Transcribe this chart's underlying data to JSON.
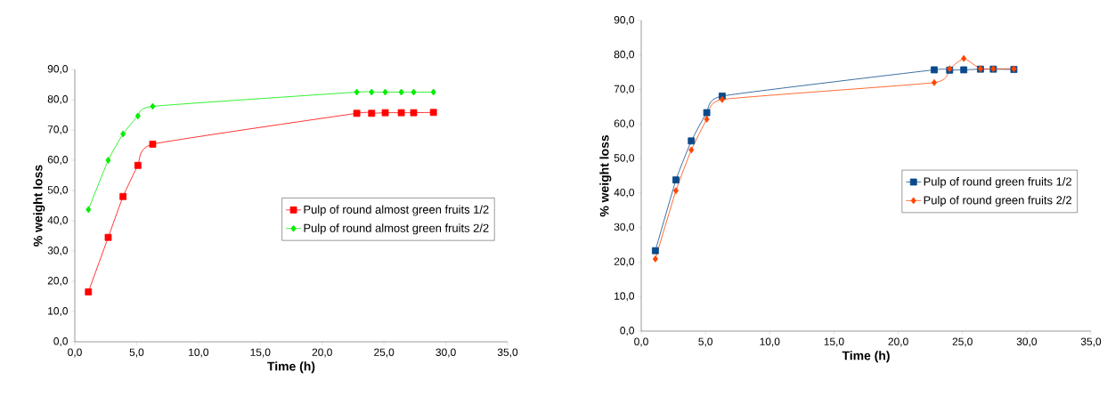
{
  "chart_data": [
    {
      "type": "line",
      "xlabel": "Time (h)",
      "ylabel": "% weight loss",
      "x": [
        1.1,
        2.7,
        3.9,
        5.1,
        6.3,
        22.8,
        24.0,
        25.1,
        26.4,
        27.4,
        29.0
      ],
      "series": [
        {
          "name": "Pulp of round almost green fruits 1/2",
          "color": "#ff0000",
          "marker": "square",
          "values": [
            16.5,
            34.5,
            48.0,
            58.3,
            65.3,
            75.5,
            75.5,
            75.7,
            75.7,
            75.7,
            75.8
          ]
        },
        {
          "name": "Pulp of round almost green fruits 2/2",
          "color": "#00ee00",
          "marker": "diamond",
          "values": [
            43.7,
            60.0,
            68.7,
            74.6,
            77.8,
            82.5,
            82.5,
            82.5,
            82.5,
            82.5,
            82.5
          ]
        }
      ],
      "xlim": [
        0,
        35
      ],
      "ylim": [
        0,
        90
      ],
      "xticks": [
        {
          "value": 0,
          "label": "0,0"
        },
        {
          "value": 5,
          "label": "5,0"
        },
        {
          "value": 10,
          "label": "10,0"
        },
        {
          "value": 15,
          "label": "15,0"
        },
        {
          "value": 20,
          "label": "20,0"
        },
        {
          "value": 25,
          "label": "25,0"
        },
        {
          "value": 30,
          "label": "30,0"
        },
        {
          "value": 35,
          "label": "35,0"
        }
      ],
      "yticks": [
        {
          "value": 0,
          "label": "0,0"
        },
        {
          "value": 10,
          "label": "10,0"
        },
        {
          "value": 20,
          "label": "20,0"
        },
        {
          "value": 30,
          "label": "30,0"
        },
        {
          "value": 40,
          "label": "40,0"
        },
        {
          "value": 50,
          "label": "50,0"
        },
        {
          "value": 60,
          "label": "60,0"
        },
        {
          "value": 70,
          "label": "70,0"
        },
        {
          "value": 80,
          "label": "80,0"
        },
        {
          "value": 90,
          "label": "90,0"
        }
      ],
      "grid": false,
      "legend": "right"
    },
    {
      "type": "line",
      "xlabel": "Time (h)",
      "ylabel": "% weight loss",
      "x": [
        1.1,
        2.7,
        3.9,
        5.1,
        6.3,
        22.8,
        24.0,
        25.1,
        26.4,
        27.4,
        29.0
      ],
      "series": [
        {
          "name": "Pulp of round green fruits 1/2",
          "color": "#0a4a8a",
          "marker": "square",
          "values": [
            23.3,
            43.8,
            55.1,
            63.3,
            68.1,
            75.7,
            75.6,
            75.7,
            75.9,
            75.9,
            75.8
          ]
        },
        {
          "name": "Pulp of round green fruits 2/2",
          "color": "#ff4500",
          "marker": "diamond",
          "values": [
            20.9,
            40.7,
            52.5,
            61.4,
            67.1,
            72.0,
            76.0,
            79.0,
            76.0,
            76.0,
            76.0
          ]
        }
      ],
      "xlim": [
        0,
        35
      ],
      "ylim": [
        0,
        90
      ],
      "xticks": [
        {
          "value": 0,
          "label": "0,0"
        },
        {
          "value": 5,
          "label": "5,0"
        },
        {
          "value": 10,
          "label": "10,0"
        },
        {
          "value": 15,
          "label": "15,0"
        },
        {
          "value": 20,
          "label": "20,0"
        },
        {
          "value": 25,
          "label": "25,0"
        },
        {
          "value": 30,
          "label": "30,0"
        },
        {
          "value": 35,
          "label": "35,0"
        }
      ],
      "yticks": [
        {
          "value": 0,
          "label": "0,0"
        },
        {
          "value": 10,
          "label": "10,0"
        },
        {
          "value": 20,
          "label": "20,0"
        },
        {
          "value": 30,
          "label": "30,0"
        },
        {
          "value": 40,
          "label": "40,0"
        },
        {
          "value": 50,
          "label": "50,0"
        },
        {
          "value": 60,
          "label": "60,0"
        },
        {
          "value": 70,
          "label": "70,0"
        },
        {
          "value": 80,
          "label": "80,0"
        },
        {
          "value": 90,
          "label": "90,0"
        }
      ],
      "grid": false,
      "legend": "right"
    }
  ]
}
